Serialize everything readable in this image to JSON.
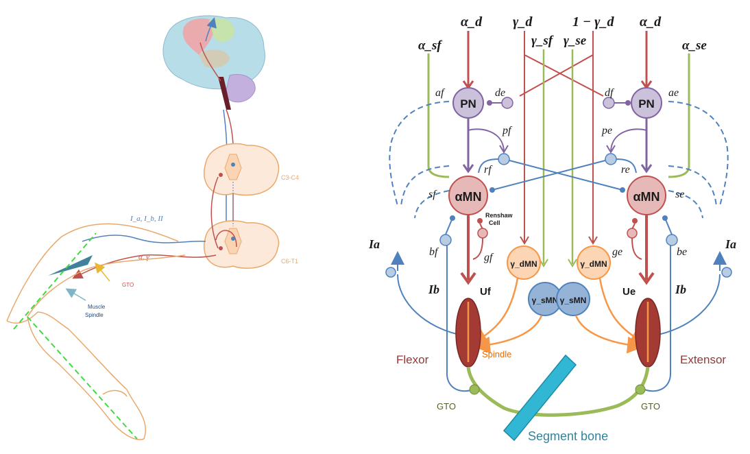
{
  "left_panel": {
    "afferent_label": "I_a, I_b, II",
    "efferent_label": "α, γ",
    "level_upper": "C3-C4",
    "level_lower": "C6-T1",
    "gto_label": "GTO",
    "muscle_spindle_line1": "Muscle",
    "muscle_spindle_line2": "Spindle"
  },
  "right_panel": {
    "top_inputs": {
      "alpha_d_left": "α_d",
      "gamma_d": "γ_d",
      "one_minus_gamma_d": "1 − γ_d",
      "alpha_d_right": "α_d",
      "alpha_sf": "α_sf",
      "gamma_sf": "γ_sf",
      "gamma_se": "γ_se",
      "alpha_se": "α_se"
    },
    "synapse_labels": {
      "af": "af",
      "de": "de",
      "df": "df",
      "ae": "ae",
      "pf": "pf",
      "pe": "pe",
      "rf": "rf",
      "re": "re",
      "sf": "sf",
      "se": "se",
      "bf": "bf",
      "be": "be",
      "gf": "gf",
      "ge": "ge"
    },
    "afferent_labels": {
      "ia_left": "Ia",
      "ia_right": "Ia",
      "ib_left": "Ib",
      "ib_right": "Ib"
    },
    "neurons": {
      "pn_left": "PN",
      "pn_right": "PN",
      "amn_left": "αMN",
      "amn_right": "αMN",
      "gdmn_left": "γ_dMN",
      "gdmn_right": "γ_dMN",
      "gsmn_left": "γ_sMN",
      "gsmn_right": "γ_sMN"
    },
    "renshaw_line1": "Renshaw",
    "renshaw_line2": "Cell",
    "uf": "Uf",
    "ue": "Ue",
    "flexor": "Flexor",
    "extensor": "Extensor",
    "spindle": "Spindle",
    "gto_left": "GTO",
    "gto_right": "GTO",
    "segment_bone": "Segment bone"
  },
  "colors": {
    "red": "#c0504d",
    "green": "#9bbb59",
    "blue": "#4f81bd",
    "purple": "#8064a2",
    "orange": "#f79646",
    "muscle": "#a33a33",
    "pn_fill": "#ccc1da",
    "mn_fill": "#e6b9b8",
    "gd_fill": "#fcd5b5",
    "gs_fill": "#95b3d7",
    "bone": "#31b6d4",
    "skin": "#e9a86a"
  }
}
